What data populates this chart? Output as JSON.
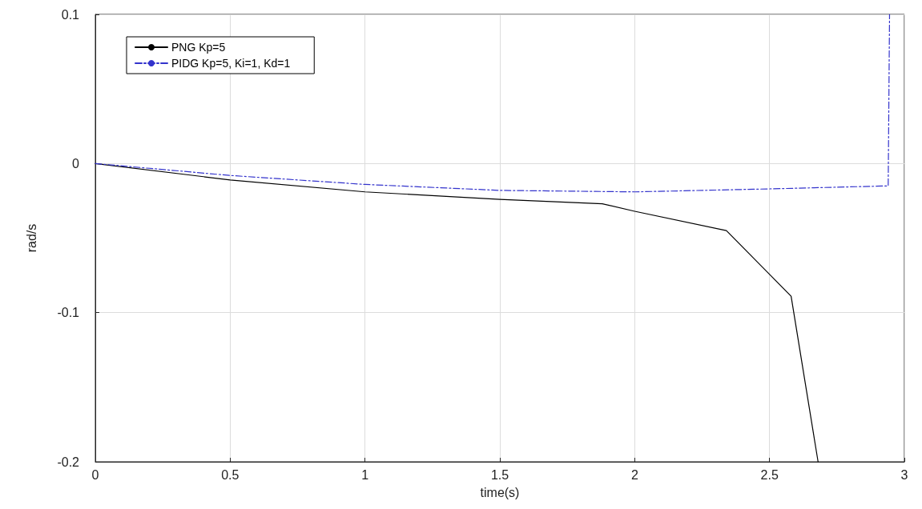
{
  "chart_data": {
    "type": "line",
    "xlabel": "time(s)",
    "ylabel": "rad/s",
    "xlim": [
      0,
      3
    ],
    "xticks": [
      0,
      0.5,
      1,
      1.5,
      2,
      2.5,
      3
    ],
    "ylim": [
      -0.2,
      0.1
    ],
    "yticks": [
      -0.2,
      -0.1,
      0,
      0.1
    ],
    "grid": true,
    "legend": "top left",
    "series": [
      {
        "name": "PNG Kp=5",
        "color": "#000000",
        "line_style": "solid",
        "x": [
          0,
          0.5,
          1,
          1.5,
          1.88,
          2,
          2.34,
          2.58,
          2.68
        ],
        "values": [
          0,
          -0.011,
          -0.019,
          -0.024,
          -0.027,
          -0.032,
          -0.045,
          -0.089,
          -0.2
        ]
      },
      {
        "name": "PIDG Kp=5, Ki=1, Kd=1",
        "color": "#3333cc",
        "line_style": "dashed",
        "x": [
          0,
          0.5,
          1,
          1.5,
          2,
          2.5,
          2.94,
          2.945
        ],
        "values": [
          0,
          -0.008,
          -0.014,
          -0.018,
          -0.019,
          -0.017,
          -0.015,
          0.1
        ]
      }
    ]
  }
}
